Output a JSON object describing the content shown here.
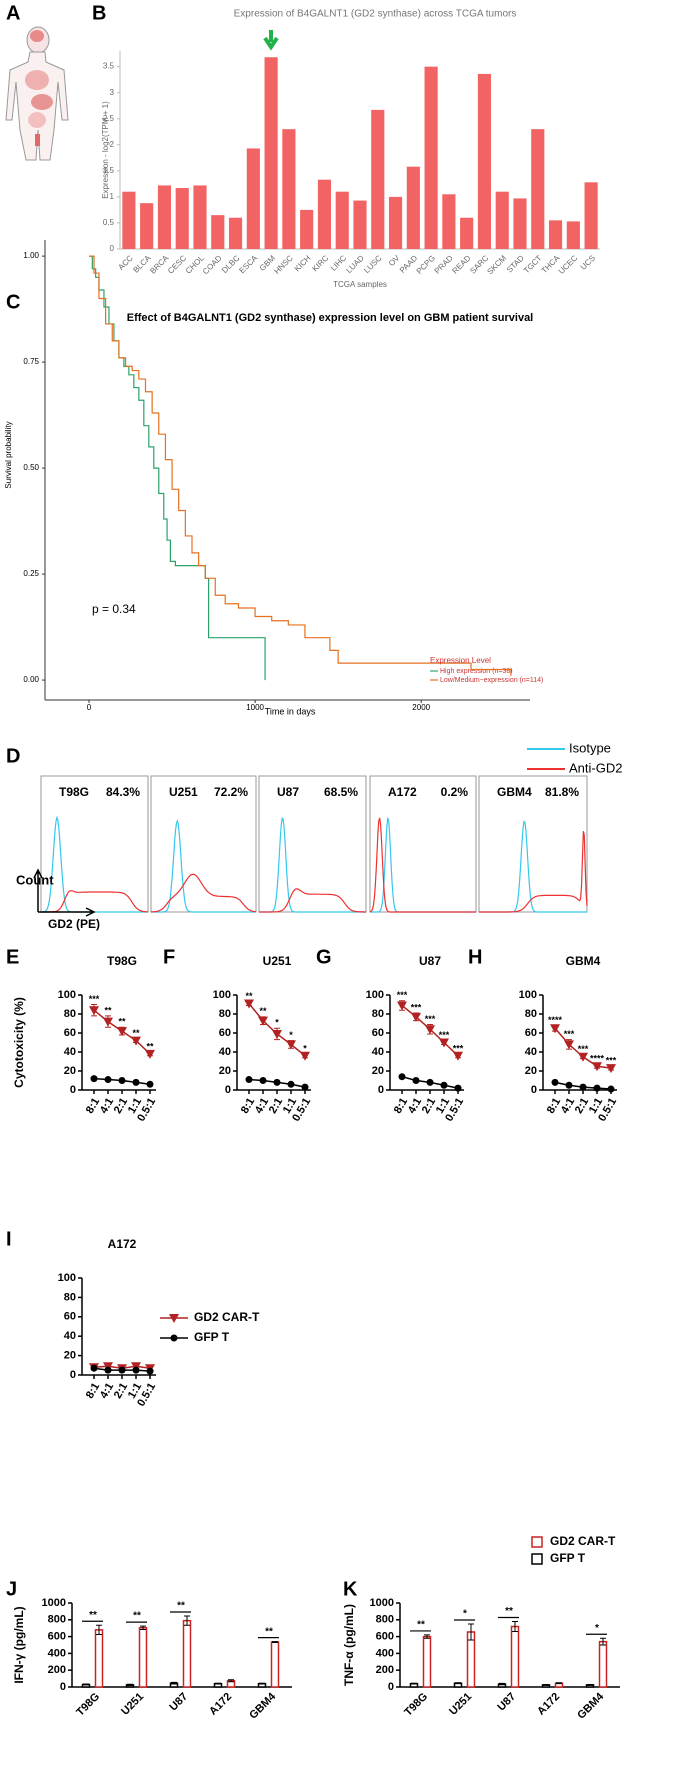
{
  "figure": {
    "panel_a": "A"
  },
  "chart_data": [
    {
      "type": "bar",
      "panel": "B",
      "title": "Expression of B4GALNT1 (GD2 synthase) across TCGA tumors",
      "xlabel": "TCGA samples",
      "ylabel": "Expression - log2(TPM + 1)",
      "color": "#f26464",
      "categories": [
        "ACC",
        "BLCA",
        "BRCA",
        "CESC",
        "CHOL",
        "COAD",
        "DLBC",
        "ESCA",
        "GBM",
        "HNSC",
        "KICH",
        "KIRC",
        "LIHC",
        "LUAD",
        "LUSC",
        "OV",
        "PAAD",
        "PCPG",
        "PRAD",
        "READ",
        "SARC",
        "SKCM",
        "STAD",
        "TGCT",
        "THCA",
        "UCEC",
        "UCS"
      ],
      "values": [
        1.1,
        0.88,
        1.22,
        1.17,
        1.22,
        0.65,
        0.6,
        1.93,
        3.68,
        2.3,
        0.75,
        1.33,
        1.1,
        0.93,
        2.67,
        1.0,
        1.58,
        3.5,
        1.05,
        0.6,
        3.36,
        1.1,
        0.97,
        2.3,
        0.55,
        0.53,
        1.28
      ],
      "ylim": [
        0,
        3.8
      ],
      "yticks": [
        0,
        0.5,
        1,
        1.5,
        2,
        2.5,
        3,
        3.5
      ]
    },
    {
      "type": "step",
      "panel": "C",
      "title": "Effect of B4GALNT1 (GD2 synthase) expression level on GBM patient survival",
      "xlabel": "Time in days",
      "ylabel": "Survival probability",
      "annotation": "p = 0.34",
      "legend_title": "Expression Level",
      "xlim": [
        -265,
        2655
      ],
      "ylim": [
        -0.047,
        1.038
      ],
      "xticks": [
        0,
        1000,
        2000
      ],
      "yticks": [
        {
          "value": 0,
          "label": "0.00"
        },
        {
          "value": 0.25,
          "label": "0.25"
        },
        {
          "value": 0.5,
          "label": "0.50"
        },
        {
          "value": 0.75,
          "label": "0.75"
        },
        {
          "value": 1,
          "label": "1.00"
        }
      ],
      "series": [
        {
          "name": "High expression (n=38)",
          "color": "#2ca26a",
          "x": [
            0,
            20,
            40,
            60,
            90,
            120,
            150,
            180,
            210,
            240,
            270,
            300,
            330,
            360,
            390,
            420,
            450,
            470,
            490,
            520,
            700,
            720,
            1000,
            1060
          ],
          "values": [
            1.0,
            0.97,
            0.95,
            0.92,
            0.88,
            0.84,
            0.8,
            0.76,
            0.74,
            0.72,
            0.69,
            0.66,
            0.6,
            0.55,
            0.5,
            0.44,
            0.38,
            0.33,
            0.28,
            0.27,
            0.24,
            0.1,
            0.1,
            0.0
          ]
        },
        {
          "name": "Low/Medium−expression (n=114)",
          "color": "#e6701f",
          "x": [
            0,
            30,
            60,
            100,
            140,
            180,
            220,
            260,
            300,
            340,
            380,
            420,
            460,
            500,
            540,
            580,
            620,
            660,
            700,
            760,
            820,
            900,
            1000,
            1100,
            1200,
            1300,
            1450,
            1500,
            2100,
            2300,
            2430,
            2540
          ],
          "values": [
            1.0,
            0.96,
            0.9,
            0.84,
            0.8,
            0.76,
            0.74,
            0.73,
            0.71,
            0.68,
            0.63,
            0.58,
            0.52,
            0.45,
            0.4,
            0.34,
            0.3,
            0.27,
            0.24,
            0.2,
            0.18,
            0.17,
            0.15,
            0.14,
            0.13,
            0.1,
            0.07,
            0.04,
            0.04,
            0.025,
            0.025,
            0.01
          ]
        }
      ]
    },
    {
      "type": "flow",
      "panel": "D",
      "xlabel": "GD2 (PE)",
      "ylabel": "Count",
      "series": [
        {
          "name": "Isotype",
          "color": "#33c8ec"
        },
        {
          "name": "Anti-GD2",
          "color": "#ee3030"
        }
      ],
      "categories": [
        "T98G",
        "U251",
        "U87",
        "A172",
        "GBM4"
      ],
      "values": [
        84.3,
        72.2,
        68.5,
        0.2,
        81.8
      ],
      "value_labels": [
        "84.3%",
        "72.2%",
        "68.5%",
        "0.2%",
        "81.8%"
      ]
    },
    {
      "type": "line",
      "panel": "E",
      "title": "T98G",
      "ylabel": "Cytotoxicity (%)",
      "categories": [
        "8:1",
        "4:1",
        "2:1",
        "1:1",
        "0.5:1"
      ],
      "ylim": [
        0,
        100
      ],
      "yticks": [
        0,
        20,
        40,
        60,
        80,
        100
      ],
      "series": [
        {
          "color": "#b22222",
          "marker": "triangle-down",
          "values": [
            84,
            72,
            62,
            52,
            38
          ],
          "errors": [
            6,
            6,
            4,
            2,
            2
          ],
          "significance": [
            "***",
            "**",
            "**",
            "**",
            "**"
          ]
        },
        {
          "color": "#000000",
          "marker": "circle",
          "values": [
            12,
            11,
            10,
            8,
            6
          ]
        }
      ]
    },
    {
      "type": "line",
      "panel": "F",
      "title": "U251",
      "categories": [
        "8:1",
        "4:1",
        "2:1",
        "1:1",
        "0.5:1"
      ],
      "ylim": [
        0,
        100
      ],
      "yticks": [
        0,
        20,
        40,
        60,
        80,
        100
      ],
      "series": [
        {
          "color": "#b22222",
          "marker": "triangle-down",
          "values": [
            91,
            73,
            59,
            48,
            36
          ],
          "errors": [
            2,
            4,
            6,
            4,
            2
          ],
          "significance": [
            "**",
            "**",
            "*",
            "*",
            "*"
          ]
        },
        {
          "color": "#000000",
          "marker": "circle",
          "values": [
            11,
            10,
            8,
            6,
            3
          ]
        }
      ]
    },
    {
      "type": "line",
      "panel": "G",
      "title": "U87",
      "categories": [
        "8:1",
        "4:1",
        "2:1",
        "1:1",
        "0.5:1"
      ],
      "ylim": [
        0,
        100
      ],
      "yticks": [
        0,
        20,
        40,
        60,
        80,
        100
      ],
      "series": [
        {
          "color": "#b22222",
          "marker": "triangle-down",
          "values": [
            89,
            77,
            64,
            50,
            36
          ],
          "errors": [
            5,
            4,
            5,
            2,
            2
          ],
          "significance": [
            "***",
            "***",
            "***",
            "***",
            "***"
          ]
        },
        {
          "color": "#000000",
          "marker": "circle",
          "values": [
            14,
            10,
            8,
            5,
            2
          ]
        }
      ]
    },
    {
      "type": "line",
      "panel": "H",
      "title": "GBM4",
      "categories": [
        "8:1",
        "4:1",
        "2:1",
        "1:1",
        "0.5:1"
      ],
      "ylim": [
        0,
        100
      ],
      "yticks": [
        0,
        20,
        40,
        60,
        80,
        100
      ],
      "series": [
        {
          "color": "#b22222",
          "marker": "triangle-down",
          "values": [
            65,
            48,
            35,
            25,
            23
          ],
          "errors": [
            3,
            5,
            2,
            2,
            2
          ],
          "significance": [
            "****",
            "***",
            "***",
            "****",
            "***"
          ]
        },
        {
          "color": "#000000",
          "marker": "circle",
          "values": [
            8,
            5,
            3,
            2,
            1
          ]
        }
      ]
    },
    {
      "type": "line",
      "panel": "I",
      "title": "A172",
      "categories": [
        "8:1",
        "4:1",
        "2:1",
        "1:1",
        "0.5:1"
      ],
      "ylim": [
        0,
        100
      ],
      "yticks": [
        0,
        20,
        40,
        60,
        80,
        100
      ],
      "series": [
        {
          "name": "GD2 CAR-T",
          "color": "#b22222",
          "marker": "triangle-down",
          "values": [
            8,
            9,
            7,
            9,
            7
          ],
          "errors": [
            2,
            2,
            2,
            2,
            2
          ]
        },
        {
          "name": "GFP T",
          "color": "#000000",
          "marker": "circle",
          "values": [
            7,
            5,
            5,
            5,
            4
          ]
        }
      ]
    },
    {
      "type": "grouped_bar",
      "panel": "J",
      "ylabel": "IFN-γ (pg/mL)",
      "categories": [
        "T98G",
        "U251",
        "U87",
        "A172",
        "GBM4"
      ],
      "ylim": [
        0,
        1000
      ],
      "yticks": [
        0,
        200,
        400,
        600,
        800,
        1000
      ],
      "significance": [
        "**",
        "**",
        "**",
        null,
        "**"
      ],
      "series": [
        {
          "color": "#cc2222",
          "values": [
            680,
            705,
            790,
            75,
            535
          ],
          "errors": [
            55,
            20,
            55,
            12,
            5
          ]
        },
        {
          "color": "#000000",
          "values": [
            30,
            25,
            45,
            40,
            40
          ],
          "errors": [
            5,
            8,
            10,
            5,
            5
          ]
        }
      ]
    },
    {
      "type": "grouped_bar",
      "panel": "K",
      "ylabel": "TNF-α (pg/mL)",
      "categories": [
        "T98G",
        "U251",
        "U87",
        "A172",
        "GBM4"
      ],
      "ylim": [
        0,
        1000
      ],
      "yticks": [
        0,
        200,
        400,
        600,
        800,
        1000
      ],
      "significance": [
        "**",
        "*",
        "**",
        null,
        "*"
      ],
      "series": [
        {
          "name": "GD2 CAR-T",
          "color": "#cc2222",
          "values": [
            600,
            655,
            720,
            45,
            540
          ],
          "errors": [
            20,
            95,
            60,
            5,
            40
          ]
        },
        {
          "name": "GFP T",
          "color": "#000000",
          "values": [
            40,
            45,
            35,
            25,
            25
          ],
          "errors": [
            5,
            5,
            8,
            5,
            5
          ]
        }
      ]
    }
  ]
}
